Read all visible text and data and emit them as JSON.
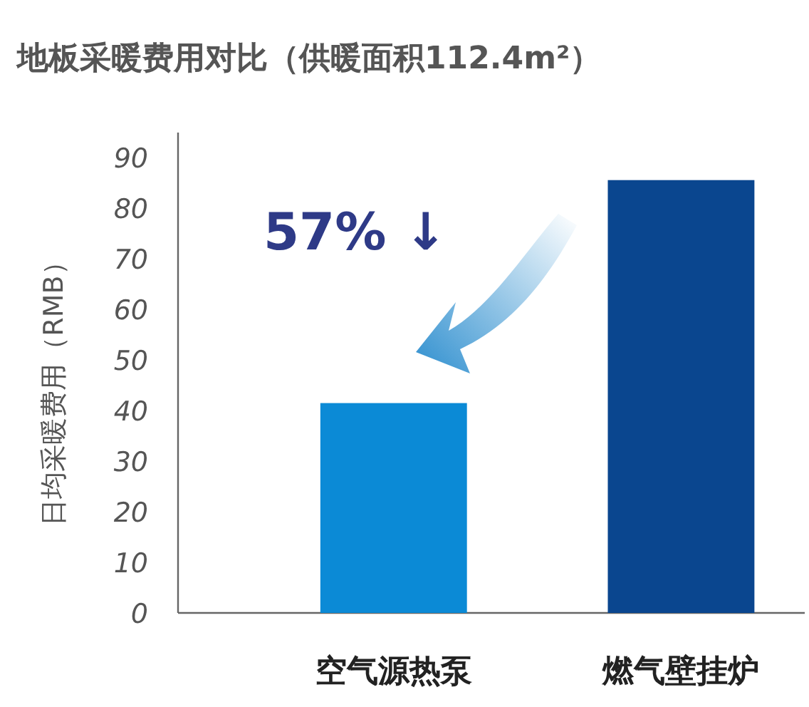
{
  "chart_data": {
    "type": "bar",
    "title": "地板采暖费用对比（供暖面积112.4m²）",
    "ylabel": "日均采暖费用（RMB）",
    "categories": [
      "空气源热泵",
      "燃气壁挂炉"
    ],
    "values": [
      41.5,
      85.6
    ],
    "colors": [
      "#0b8ad6",
      "#0a468f"
    ],
    "ylim": [
      0,
      95
    ],
    "yticks": [
      0,
      10,
      20,
      30,
      40,
      50,
      60,
      70,
      80,
      90
    ],
    "annotations": [
      "57% ↓"
    ]
  }
}
